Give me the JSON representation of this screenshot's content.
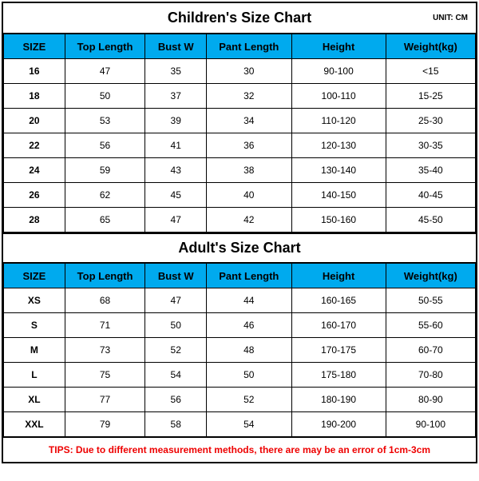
{
  "unit_label": "UNIT: CM",
  "header_bg": "#00aaee",
  "border_color": "#000000",
  "tips_color": "#ee0000",
  "tips_text": "TIPS: Due to different measurement methods, there are may be an error of 1cm-3cm",
  "columns": [
    "SIZE",
    "Top Length",
    "Bust W",
    "Pant Length",
    "Height",
    "Weight(kg)"
  ],
  "children": {
    "title": "Children's Size Chart",
    "rows": [
      [
        "16",
        "47",
        "35",
        "30",
        "90-100",
        "<15"
      ],
      [
        "18",
        "50",
        "37",
        "32",
        "100-110",
        "15-25"
      ],
      [
        "20",
        "53",
        "39",
        "34",
        "110-120",
        "25-30"
      ],
      [
        "22",
        "56",
        "41",
        "36",
        "120-130",
        "30-35"
      ],
      [
        "24",
        "59",
        "43",
        "38",
        "130-140",
        "35-40"
      ],
      [
        "26",
        "62",
        "45",
        "40",
        "140-150",
        "40-45"
      ],
      [
        "28",
        "65",
        "47",
        "42",
        "150-160",
        "45-50"
      ]
    ]
  },
  "adult": {
    "title": "Adult's Size Chart",
    "rows": [
      [
        "XS",
        "68",
        "47",
        "44",
        "160-165",
        "50-55"
      ],
      [
        "S",
        "71",
        "50",
        "46",
        "160-170",
        "55-60"
      ],
      [
        "M",
        "73",
        "52",
        "48",
        "170-175",
        "60-70"
      ],
      [
        "L",
        "75",
        "54",
        "50",
        "175-180",
        "70-80"
      ],
      [
        "XL",
        "77",
        "56",
        "52",
        "180-190",
        "80-90"
      ],
      [
        "XXL",
        "79",
        "58",
        "54",
        "190-200",
        "90-100"
      ]
    ]
  }
}
